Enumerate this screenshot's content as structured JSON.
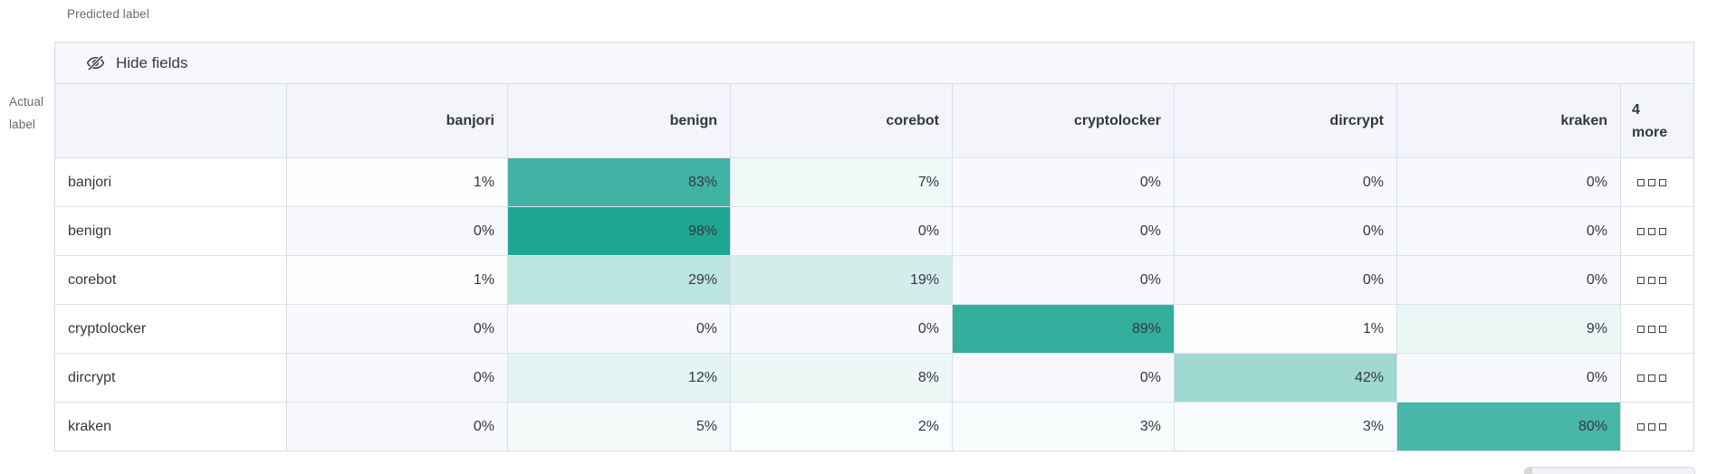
{
  "axis": {
    "predicted_label": "Predicted label",
    "actual_label_line1": "Actual",
    "actual_label_line2": "label"
  },
  "toolbar": {
    "hide_fields_label": "Hide fields",
    "icon": "eye-closed-icon"
  },
  "more_column": {
    "line1": "4",
    "line2": "more",
    "cell_icon": "hidden-cells-icon"
  },
  "ui": {
    "value_suffix": "%"
  },
  "colors": {
    "heat_base": "#1AA491",
    "zero_cell_bg": "#F8F9FC",
    "header_bg": "#F3F5FA",
    "toolbar_bg": "#F7F8FC",
    "border": "#D3DAE6",
    "text": "#343741",
    "muted_text": "#646A77"
  },
  "chart_data": {
    "type": "heatmap",
    "xlabel": "Predicted label",
    "ylabel": "Actual label",
    "x_categories": [
      "banjori",
      "benign",
      "corebot",
      "cryptolocker",
      "dircrypt",
      "kraken"
    ],
    "x_hidden_categories_label": "4 more",
    "y_categories": [
      "banjori",
      "benign",
      "corebot",
      "cryptolocker",
      "dircrypt",
      "kraken"
    ],
    "values_percent": [
      [
        1,
        83,
        7,
        0,
        0,
        0
      ],
      [
        0,
        98,
        0,
        0,
        0,
        0
      ],
      [
        1,
        29,
        19,
        0,
        0,
        0
      ],
      [
        0,
        0,
        0,
        89,
        1,
        9
      ],
      [
        0,
        12,
        8,
        0,
        42,
        0
      ],
      [
        0,
        5,
        2,
        3,
        3,
        80
      ]
    ],
    "color_scale": {
      "type": "linear-white-to-teal",
      "min_color": "#F8F9FC",
      "max_color": "#1AA491",
      "domain": [
        0,
        100
      ]
    },
    "legend": "none",
    "grid": "on"
  }
}
